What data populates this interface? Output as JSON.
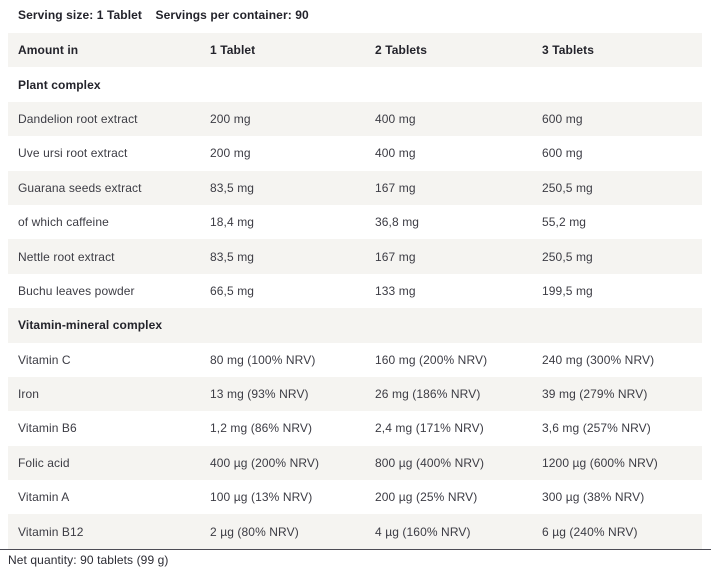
{
  "serving": {
    "serving_size": "Serving size: 1 Tablet",
    "servings_per_container": "Servings per container: 90"
  },
  "columns": [
    "Amount in",
    "1 Tablet",
    "2 Tablets",
    "3 Tablets"
  ],
  "sections": [
    {
      "title": "Plant complex",
      "rows": [
        {
          "name": "Dandelion root extract",
          "v1": "200 mg",
          "v2": "400 mg",
          "v3": "600 mg"
        },
        {
          "name": "Uve ursi root extract",
          "v1": "200 mg",
          "v2": "400 mg",
          "v3": "600 mg"
        },
        {
          "name": "Guarana seeds extract",
          "v1": "83,5 mg",
          "v2": "167 mg",
          "v3": "250,5 mg"
        },
        {
          "name": "of which caffeine",
          "v1": "18,4 mg",
          "v2": "36,8 mg",
          "v3": "55,2 mg"
        },
        {
          "name": "Nettle root extract",
          "v1": "83,5 mg",
          "v2": "167 mg",
          "v3": "250,5 mg"
        },
        {
          "name": "Buchu leaves powder",
          "v1": "66,5 mg",
          "v2": "133 mg",
          "v3": "199,5 mg"
        }
      ]
    },
    {
      "title": "Vitamin-mineral complex",
      "rows": [
        {
          "name": "Vitamin C",
          "v1": "80 mg (100% NRV)",
          "v2": "160 mg (200% NRV)",
          "v3": "240 mg (300% NRV)"
        },
        {
          "name": "Iron",
          "v1": "13 mg (93% NRV)",
          "v2": "26 mg (186% NRV)",
          "v3": "39 mg (279% NRV)"
        },
        {
          "name": "Vitamin B6",
          "v1": "1,2 mg (86% NRV)",
          "v2": "2,4 mg (171% NRV)",
          "v3": "3,6 mg (257% NRV)"
        },
        {
          "name": "Folic acid",
          "v1": "400 µg (200% NRV)",
          "v2": "800 µg (400% NRV)",
          "v3": "1200 µg (600% NRV)"
        },
        {
          "name": "Vitamin A",
          "v1": "100 µg (13% NRV)",
          "v2": "200 µg (25% NRV)",
          "v3": "300 µg (38% NRV)"
        },
        {
          "name": "Vitamin B12",
          "v1": "2 µg (80% NRV)",
          "v2": "4 µg (160% NRV)",
          "v3": "6 µg (240% NRV)"
        }
      ]
    }
  ],
  "footer": {
    "net_quantity": "Net quantity: 90 tablets (99 g)"
  },
  "colors": {
    "stripe": "#f5f4f1",
    "heading_text": "#23232b",
    "body_text": "#3c3c44",
    "divider": "#4c4c55"
  }
}
